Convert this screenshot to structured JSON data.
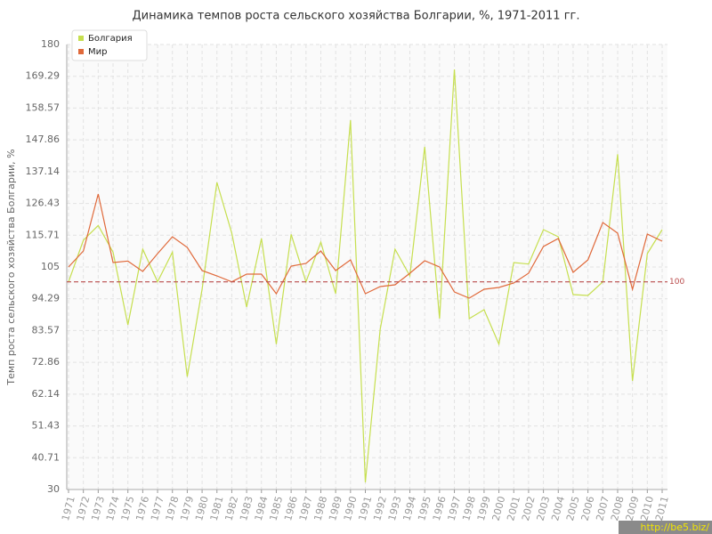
{
  "chart_data": {
    "type": "line",
    "title": "Динамика темпов роста сельского хозяйства Болгарии, %, 1971-2011 гг.",
    "y_label": "Темп роста сельского хозяйства Болгарии, %",
    "categories": [
      "1971",
      "1972",
      "1973",
      "1974",
      "1975",
      "1976",
      "1977",
      "1978",
      "1979",
      "1980",
      "1981",
      "1982",
      "1983",
      "1984",
      "1985",
      "1986",
      "1987",
      "1988",
      "1989",
      "1990",
      "1991",
      "1992",
      "1993",
      "1994",
      "1995",
      "1996",
      "1997",
      "1998",
      "1999",
      "2000",
      "2001",
      "2002",
      "2003",
      "2004",
      "2005",
      "2006",
      "2007",
      "2008",
      "2009",
      "2010",
      "2011"
    ],
    "series": [
      {
        "name": "Болгария",
        "color": "#c6df4f",
        "values": [
          100,
          114,
          119,
          110,
          85.5,
          111,
          100,
          110,
          68,
          97.5,
          133.5,
          116.4,
          91.5,
          114.6,
          79,
          116,
          100,
          113.4,
          96,
          154.5,
          32.4,
          84,
          111,
          102,
          145.5,
          87.6,
          171.6,
          87.6,
          90.6,
          79,
          106.5,
          106,
          117.6,
          115.2,
          95.7,
          95.4,
          100,
          143,
          66.6,
          109.5,
          117.6
        ]
      },
      {
        "name": "Мир",
        "color": "#e0693a",
        "values": [
          105,
          110.4,
          129.6,
          106.5,
          107,
          103.5,
          109.5,
          115.2,
          111.6,
          103.8,
          102,
          100,
          102.6,
          102.6,
          96,
          105.3,
          106.2,
          110.4,
          103.8,
          107.4,
          96,
          98.4,
          99,
          102.9,
          107.1,
          105,
          96.6,
          94.5,
          97.5,
          98.1,
          99.6,
          102.9,
          111.9,
          114.6,
          103.2,
          107.4,
          120,
          116.4,
          97.5,
          116.1,
          113.7
        ]
      }
    ],
    "ylim": [
      30,
      180
    ],
    "yticks": [
      30,
      40.71,
      51.43,
      62.14,
      72.86,
      83.57,
      94.29,
      105,
      115.71,
      126.43,
      137.14,
      147.86,
      158.57,
      169.29,
      180
    ],
    "reference_line": 100,
    "reference_color": "#b94a4a",
    "grid": true,
    "legend": "top-left",
    "watermark": "http://be5.biz/"
  }
}
